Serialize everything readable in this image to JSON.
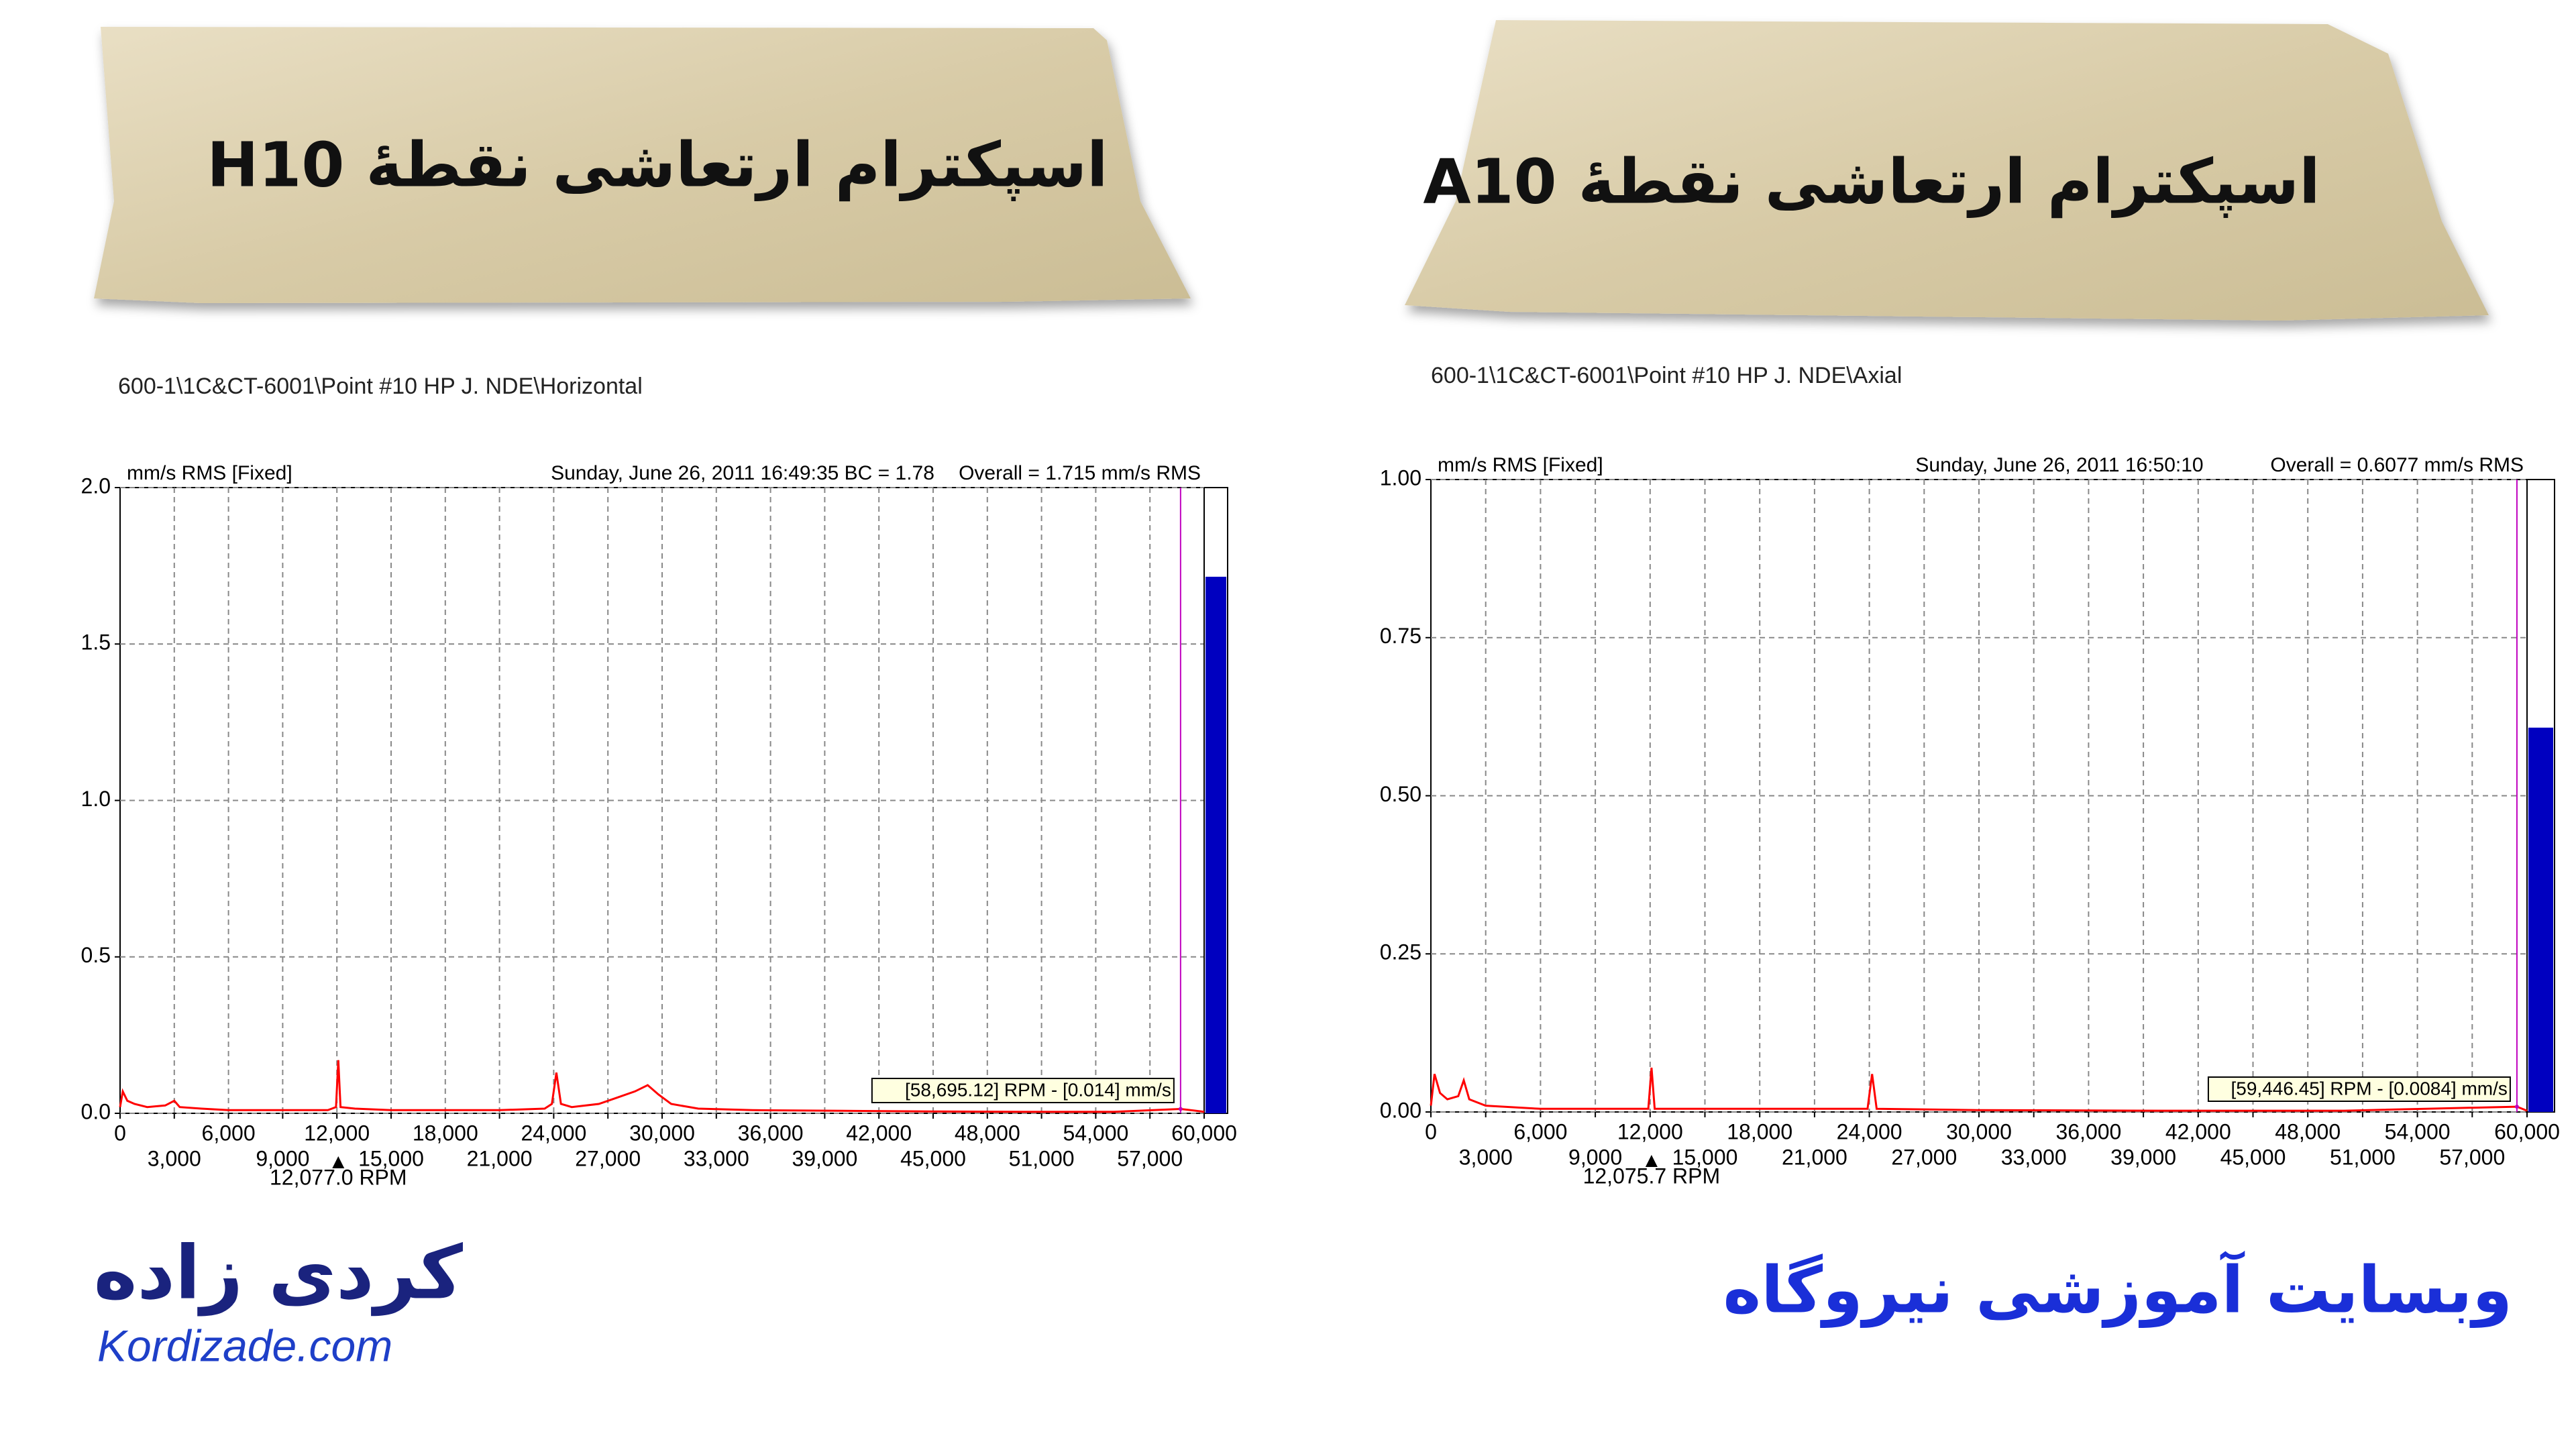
{
  "chart_data": [
    {
      "type": "line",
      "title": "اسپکترام ارتعاشی نقطهٔ H10",
      "subtitle": "600-1\\1C&CT-6001\\Point #10 HP J. NDE\\Horizontal",
      "unit_label": "mm/s  RMS  [Fixed]",
      "timestamp": "Sunday, June 26, 2011 16:49:35 BC = 1.78",
      "overall_label": "Overall = 1.715 mm/s RMS",
      "overall": 1.715,
      "cursor": {
        "x": 58695.12,
        "y": 0.014,
        "label": "[58,695.12] RPM - [0.014] mm/s"
      },
      "marker": {
        "x": 12077,
        "label": "12,077.0 RPM"
      },
      "color": "#ff0000",
      "x": [
        0,
        150,
        400,
        800,
        1500,
        2500,
        3000,
        3300,
        4500,
        6000,
        9000,
        11500,
        11950,
        12077,
        12200,
        13000,
        15000,
        18000,
        21000,
        23500,
        23900,
        24150,
        24400,
        25000,
        26500,
        27500,
        28500,
        29200,
        29800,
        30500,
        32000,
        35000,
        40000,
        45000,
        50000,
        55000,
        58695,
        60000
      ],
      "values": [
        0.02,
        0.07,
        0.04,
        0.03,
        0.02,
        0.025,
        0.04,
        0.02,
        0.015,
        0.01,
        0.01,
        0.01,
        0.02,
        0.17,
        0.02,
        0.015,
        0.01,
        0.01,
        0.01,
        0.015,
        0.03,
        0.13,
        0.03,
        0.02,
        0.03,
        0.05,
        0.07,
        0.09,
        0.06,
        0.03,
        0.015,
        0.01,
        0.008,
        0.006,
        0.005,
        0.005,
        0.014,
        0.005
      ],
      "xlim": [
        0,
        60000
      ],
      "xticks": [
        0,
        {
          "value": 3000,
          "label": "3,000"
        },
        {
          "value": 6000,
          "label": "6,000"
        },
        {
          "value": 9000,
          "label": "9,000"
        },
        {
          "value": 12000,
          "label": "12,000"
        },
        {
          "value": 15000,
          "label": "15,000"
        },
        {
          "value": 18000,
          "label": "18,000"
        },
        {
          "value": 21000,
          "label": "21,000"
        },
        {
          "value": 24000,
          "label": "24,000"
        },
        {
          "value": 27000,
          "label": "27,000"
        },
        {
          "value": 30000,
          "label": "30,000"
        },
        {
          "value": 33000,
          "label": "33,000"
        },
        {
          "value": 36000,
          "label": "36,000"
        },
        {
          "value": 39000,
          "label": "39,000"
        },
        {
          "value": 42000,
          "label": "42,000"
        },
        {
          "value": 45000,
          "label": "45,000"
        },
        {
          "value": 48000,
          "label": "48,000"
        },
        {
          "value": 51000,
          "label": "51,000"
        },
        {
          "value": 54000,
          "label": "54,000"
        },
        {
          "value": 57000,
          "label": "57,000"
        },
        {
          "value": 60000,
          "label": "60,000"
        }
      ],
      "ylim": [
        0,
        2
      ],
      "yticks": [
        {
          "value": 0,
          "label": "0.0"
        },
        0.5,
        {
          "value": 1,
          "label": "1.0"
        },
        1.5,
        {
          "value": 2,
          "label": "2.0"
        }
      ],
      "grid": true
    },
    {
      "type": "line",
      "title": "اسپکترام ارتعاشی نقطهٔ A10",
      "subtitle": "600-1\\1C&CT-6001\\Point #10 HP J. NDE\\Axial",
      "unit_label": "mm/s  RMS  [Fixed]",
      "timestamp": "Sunday, June 26, 2011 16:50:10",
      "overall_label": "Overall = 0.6077 mm/s RMS",
      "overall": 0.6077,
      "cursor": {
        "x": 59446.45,
        "y": 0.0084,
        "label": "[59,446.45] RPM - [0.0084] mm/s"
      },
      "marker": {
        "x": 12075.7,
        "label": "12,075.7 RPM"
      },
      "color": "#ff0000",
      "x": [
        0,
        200,
        500,
        900,
        1500,
        1800,
        2100,
        3000,
        6000,
        11900,
        12076,
        12250,
        18000,
        23900,
        24150,
        24400,
        30000,
        40000,
        50000,
        59446,
        60000
      ],
      "values": [
        0.01,
        0.06,
        0.03,
        0.02,
        0.025,
        0.05,
        0.02,
        0.01,
        0.005,
        0.005,
        0.07,
        0.005,
        0.005,
        0.005,
        0.06,
        0.005,
        0.003,
        0.002,
        0.002,
        0.0084,
        0.002
      ],
      "xlim": [
        0,
        60000
      ],
      "xticks": [
        0,
        {
          "value": 3000,
          "label": "3,000"
        },
        {
          "value": 6000,
          "label": "6,000"
        },
        {
          "value": 9000,
          "label": "9,000"
        },
        {
          "value": 12000,
          "label": "12,000"
        },
        {
          "value": 15000,
          "label": "15,000"
        },
        {
          "value": 18000,
          "label": "18,000"
        },
        {
          "value": 21000,
          "label": "21,000"
        },
        {
          "value": 24000,
          "label": "24,000"
        },
        {
          "value": 27000,
          "label": "27,000"
        },
        {
          "value": 30000,
          "label": "30,000"
        },
        {
          "value": 33000,
          "label": "33,000"
        },
        {
          "value": 36000,
          "label": "36,000"
        },
        {
          "value": 39000,
          "label": "39,000"
        },
        {
          "value": 42000,
          "label": "42,000"
        },
        {
          "value": 45000,
          "label": "45,000"
        },
        {
          "value": 48000,
          "label": "48,000"
        },
        {
          "value": 51000,
          "label": "51,000"
        },
        {
          "value": 54000,
          "label": "54,000"
        },
        {
          "value": 57000,
          "label": "57,000"
        },
        {
          "value": 60000,
          "label": "60,000"
        }
      ],
      "ylim": [
        0,
        1
      ],
      "yticks": [
        {
          "value": 0,
          "label": "0.00"
        },
        0.25,
        {
          "value": 0.5,
          "label": "0.50"
        },
        0.75,
        {
          "value": 1,
          "label": "1.00"
        }
      ],
      "grid": true
    }
  ],
  "logos": {
    "name_fa": "کردی زاده",
    "site": "Kordizade.com",
    "tagline": "وبسایت آموزشی نیروگاه"
  }
}
